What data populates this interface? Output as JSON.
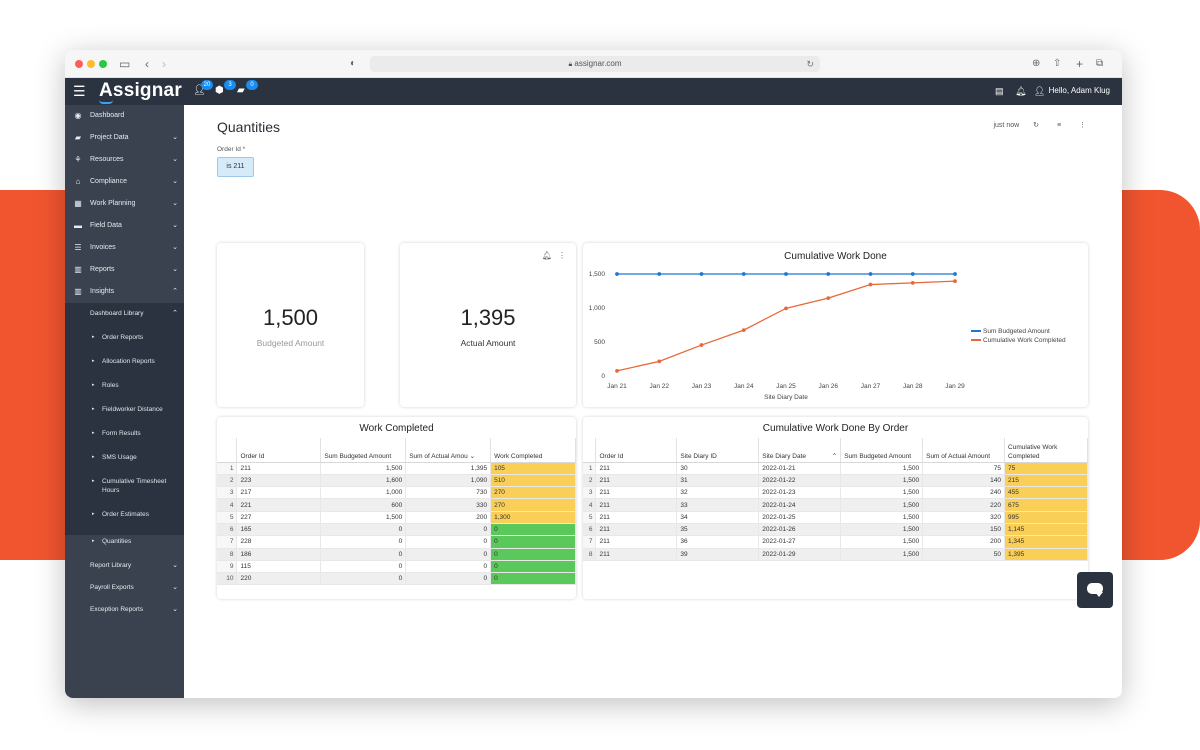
{
  "browser": {
    "url": "assignar.com"
  },
  "app": {
    "logo": "Assignar",
    "badges": [
      "20",
      "3",
      "0"
    ],
    "greeting": "Hello, Adam Klug"
  },
  "sidebar": {
    "items": [
      {
        "label": "Dashboard",
        "chevron": false
      },
      {
        "label": "Project Data",
        "chevron": true
      },
      {
        "label": "Resources",
        "chevron": true
      },
      {
        "label": "Compliance",
        "chevron": true
      },
      {
        "label": "Work Planning",
        "chevron": true
      },
      {
        "label": "Field Data",
        "chevron": true
      },
      {
        "label": "Invoices",
        "chevron": true
      },
      {
        "label": "Reports",
        "chevron": true
      },
      {
        "label": "Insights",
        "chevron": true
      }
    ],
    "dashboard_library": "Dashboard Library",
    "subitems": [
      "Order Reports",
      "Allocation Reports",
      "Roles",
      "Fieldworker Distance",
      "Form Results",
      "SMS Usage",
      "Cumulative Timesheet Hours",
      "Order Estimates",
      "Quantities"
    ],
    "bottom": [
      "Report Library",
      "Payroll Exports",
      "Exception Reports"
    ]
  },
  "page": {
    "title": "Quantities",
    "last_updated": "just now",
    "filter_label": "Order Id *",
    "filter_value": "is 211"
  },
  "kpis": [
    {
      "value": "1,500",
      "label": "Budgeted Amount"
    },
    {
      "value": "1,395",
      "label": "Actual Amount"
    }
  ],
  "chart_data": {
    "type": "line",
    "title": "Cumulative Work Done",
    "xlabel": "Site Diary Date",
    "ylabel": "",
    "x": [
      "Jan 21",
      "Jan 22",
      "Jan 23",
      "Jan 24",
      "Jan 25",
      "Jan 26",
      "Jan 27",
      "Jan 28",
      "Jan 29"
    ],
    "ylim": [
      0,
      1500
    ],
    "yticks": [
      "0",
      "500",
      "1,000",
      "1,500"
    ],
    "series": [
      {
        "name": "Sum Budgeted Amount",
        "color": "#1f77d0",
        "values": [
          1500,
          1500,
          1500,
          1500,
          1500,
          1500,
          1500,
          1500,
          1500
        ]
      },
      {
        "name": "Cumulative Work Completed",
        "color": "#e8683a",
        "values": [
          75,
          215,
          455,
          675,
          995,
          1145,
          1345,
          1370,
          1395
        ]
      }
    ]
  },
  "work_completed": {
    "title": "Work Completed",
    "headers": [
      "Order Id",
      "Sum Budgeted Amount",
      "Sum of Actual Amou",
      "Work Completed"
    ],
    "rows": [
      [
        "1",
        "211",
        "1,500",
        "1,395",
        "105",
        "y"
      ],
      [
        "2",
        "223",
        "1,600",
        "1,090",
        "510",
        "y"
      ],
      [
        "3",
        "217",
        "1,000",
        "730",
        "270",
        "y"
      ],
      [
        "4",
        "221",
        "600",
        "330",
        "270",
        "y"
      ],
      [
        "5",
        "227",
        "1,500",
        "200",
        "1,300",
        "y"
      ],
      [
        "6",
        "165",
        "0",
        "0",
        "0",
        "g"
      ],
      [
        "7",
        "228",
        "0",
        "0",
        "0",
        "g"
      ],
      [
        "8",
        "186",
        "0",
        "0",
        "0",
        "g"
      ],
      [
        "9",
        "115",
        "0",
        "0",
        "0",
        "g"
      ],
      [
        "10",
        "220",
        "0",
        "0",
        "0",
        "g"
      ]
    ]
  },
  "cumulative_by_order": {
    "title": "Cumulative Work Done By Order",
    "headers": [
      "Order Id",
      "Site Diary ID",
      "Site Diary Date",
      "Sum Budgeted Amount",
      "Sum of Actual Amount",
      "Cumulative Work Completed"
    ],
    "rows": [
      [
        "1",
        "211",
        "30",
        "2022-01-21",
        "1,500",
        "75",
        "75"
      ],
      [
        "2",
        "211",
        "31",
        "2022-01-22",
        "1,500",
        "140",
        "215"
      ],
      [
        "3",
        "211",
        "32",
        "2022-01-23",
        "1,500",
        "240",
        "455"
      ],
      [
        "4",
        "211",
        "33",
        "2022-01-24",
        "1,500",
        "220",
        "675"
      ],
      [
        "5",
        "211",
        "34",
        "2022-01-25",
        "1,500",
        "320",
        "995"
      ],
      [
        "6",
        "211",
        "35",
        "2022-01-26",
        "1,500",
        "150",
        "1,145"
      ],
      [
        "7",
        "211",
        "36",
        "2022-01-27",
        "1,500",
        "200",
        "1,345"
      ],
      [
        "8",
        "211",
        "39",
        "2022-01-29",
        "1,500",
        "50",
        "1,395"
      ]
    ]
  }
}
